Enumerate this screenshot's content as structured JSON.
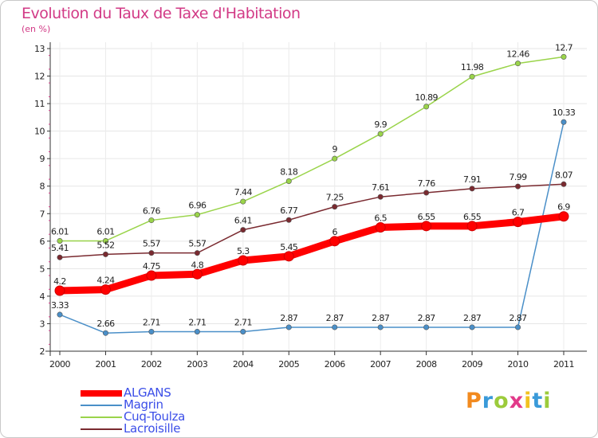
{
  "chart_data": {
    "type": "line",
    "title": "Evolution du Taux de Taxe d'Habitation",
    "ylabel": "(en %)",
    "xlabel": "",
    "categories": [
      "2000",
      "2001",
      "2002",
      "2003",
      "2004",
      "2005",
      "2006",
      "2007",
      "2008",
      "2009",
      "2010",
      "2011"
    ],
    "yticks": [
      "2",
      "3",
      "4",
      "5",
      "6",
      "7",
      "8",
      "9",
      "10",
      "11",
      "12",
      "13"
    ],
    "ylim": [
      2,
      13
    ],
    "grid": true,
    "legend_position": "bottom-left",
    "series": [
      {
        "name": "ALGANS",
        "color": "#ff0000",
        "values": [
          4.2,
          4.24,
          4.75,
          4.8,
          5.3,
          5.45,
          6,
          6.5,
          6.55,
          6.55,
          6.7,
          6.9
        ],
        "labels": [
          "4.2",
          "4.24",
          "4.75",
          "4.8",
          "5.3",
          "5.45",
          "6",
          "6.5",
          "6.55",
          "6.55",
          "6.7",
          "6.9"
        ]
      },
      {
        "name": "Magrin",
        "color": "#4a8fc8",
        "values": [
          3.33,
          2.66,
          2.71,
          2.71,
          2.71,
          2.87,
          2.87,
          2.87,
          2.87,
          2.87,
          2.87,
          10.33
        ],
        "labels": [
          "3.33",
          "2.66",
          "2.71",
          "2.71",
          "2.71",
          "2.87",
          "2.87",
          "2.87",
          "2.87",
          "2.87",
          "2.87",
          "10.33"
        ]
      },
      {
        "name": "Cuq-Toulza",
        "color": "#9ad44a",
        "values": [
          6.01,
          6.01,
          6.76,
          6.96,
          7.44,
          8.18,
          9,
          9.9,
          10.89,
          11.98,
          12.46,
          12.7
        ],
        "labels": [
          "6.01",
          "6.01",
          "6.76",
          "6.96",
          "7.44",
          "8.18",
          "9",
          "9.9",
          "10.89",
          "11.98",
          "12.46",
          "12.7"
        ]
      },
      {
        "name": "Lacroisille",
        "color": "#7a2a30",
        "values": [
          5.41,
          5.52,
          5.57,
          5.57,
          6.41,
          6.77,
          7.25,
          7.61,
          7.76,
          7.91,
          7.99,
          8.07
        ],
        "labels": [
          "5.41",
          "5.52",
          "5.57",
          "5.57",
          "6.41",
          "6.77",
          "7.25",
          "7.61",
          "7.76",
          "7.91",
          "7.99",
          "8.07"
        ]
      }
    ]
  },
  "branding": {
    "letters": [
      "P",
      "r",
      "o",
      "x",
      "i",
      "t",
      "i"
    ]
  }
}
